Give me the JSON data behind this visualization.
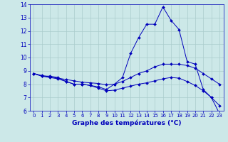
{
  "title": "Graphe des températures (°C)",
  "xlim": [
    -0.5,
    23.5
  ],
  "ylim": [
    6,
    14
  ],
  "xticks": [
    0,
    1,
    2,
    3,
    4,
    5,
    6,
    7,
    8,
    9,
    10,
    11,
    12,
    13,
    14,
    15,
    16,
    17,
    18,
    19,
    20,
    21,
    22,
    23
  ],
  "yticks": [
    6,
    7,
    8,
    9,
    10,
    11,
    12,
    13,
    14
  ],
  "background_color": "#cce8e8",
  "grid_color": "#aacccc",
  "line_color": "#0000bb",
  "series1": {
    "x": [
      0,
      1,
      2,
      3,
      4,
      5,
      6,
      7,
      8,
      9,
      10,
      11,
      12,
      13,
      14,
      15,
      16,
      17,
      18,
      19,
      20,
      21,
      22,
      23
    ],
    "y": [
      8.8,
      8.6,
      8.6,
      8.5,
      8.2,
      8.0,
      8.0,
      7.9,
      7.8,
      7.6,
      8.0,
      8.5,
      10.3,
      11.5,
      12.5,
      12.5,
      13.8,
      12.8,
      12.1,
      9.7,
      9.5,
      7.6,
      7.0,
      5.8
    ]
  },
  "series2": {
    "x": [
      0,
      1,
      2,
      3,
      4,
      5,
      6,
      7,
      8,
      9,
      10,
      11,
      12,
      13,
      14,
      15,
      16,
      17,
      18,
      19,
      20,
      21,
      22,
      23
    ],
    "y": [
      8.8,
      8.65,
      8.55,
      8.45,
      8.35,
      8.25,
      8.15,
      8.1,
      8.05,
      7.95,
      8.0,
      8.2,
      8.5,
      8.8,
      9.0,
      9.3,
      9.5,
      9.5,
      9.5,
      9.4,
      9.2,
      8.8,
      8.4,
      8.0
    ]
  },
  "series3": {
    "x": [
      0,
      1,
      2,
      3,
      4,
      5,
      6,
      7,
      8,
      9,
      10,
      11,
      12,
      13,
      14,
      15,
      16,
      17,
      18,
      19,
      20,
      21,
      22,
      23
    ],
    "y": [
      8.8,
      8.6,
      8.5,
      8.4,
      8.2,
      8.0,
      8.0,
      7.9,
      7.7,
      7.5,
      7.55,
      7.7,
      7.85,
      8.0,
      8.1,
      8.25,
      8.4,
      8.5,
      8.45,
      8.2,
      7.9,
      7.5,
      7.0,
      6.4
    ]
  }
}
